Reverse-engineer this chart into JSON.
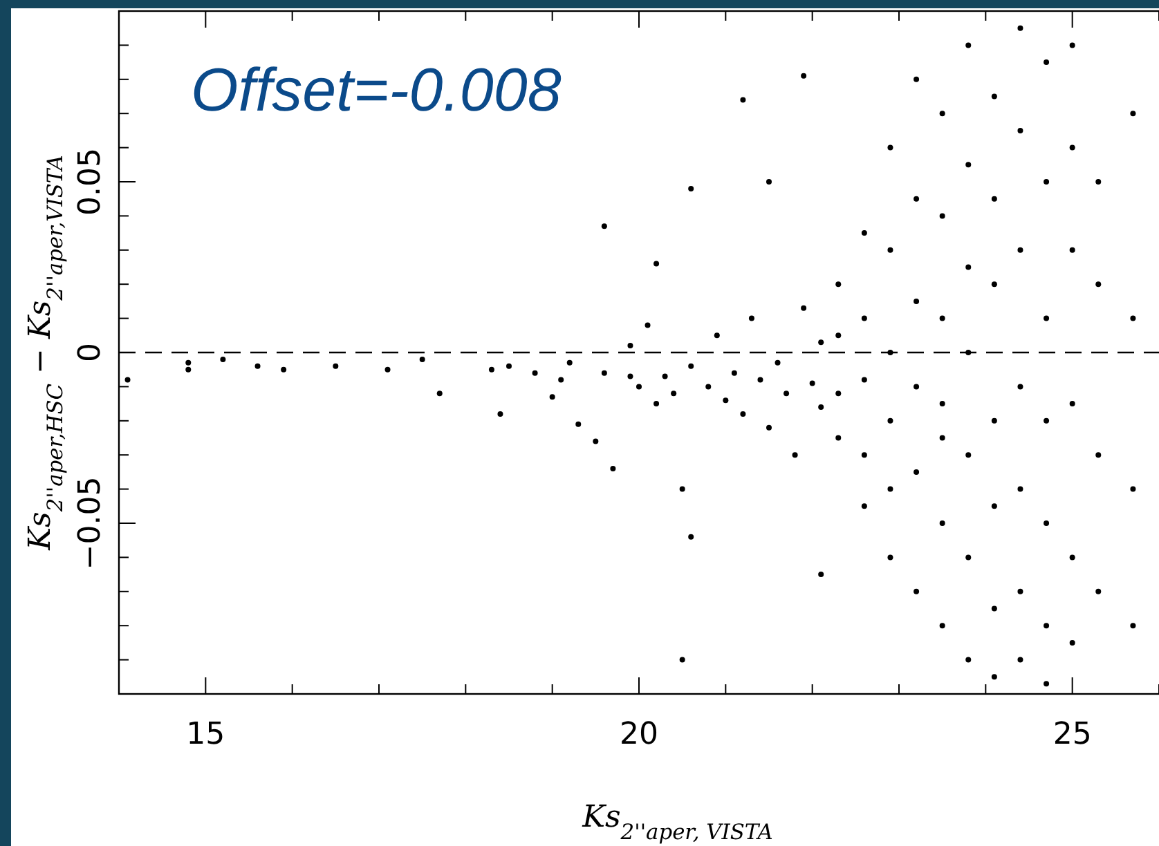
{
  "chart_data": {
    "type": "scatter",
    "xlabel": "Ks$_{2''aper, VISTA}$",
    "ylabel": "Ks$_{2''aper,HSC}$  −  Ks$_{2''aper,VISTA}$",
    "annotations": [
      "Offset=-0.008"
    ],
    "xlim": [
      14,
      26
    ],
    "ylim": [
      -0.1,
      0.1
    ],
    "xticks": [
      {
        "value": 14,
        "label": null
      },
      15,
      {
        "value": 16,
        "label": null
      },
      {
        "value": 17,
        "label": null
      },
      {
        "value": 18,
        "label": null
      },
      {
        "value": 19,
        "label": null
      },
      20,
      {
        "value": 21,
        "label": null
      },
      {
        "value": 22,
        "label": null
      },
      {
        "value": 23,
        "label": null
      },
      {
        "value": 24,
        "label": null
      },
      25,
      {
        "value": 26,
        "label": null
      }
    ],
    "yticks": [
      {
        "value": -0.09,
        "label": null
      },
      {
        "value": -0.08,
        "label": null
      },
      {
        "value": -0.07,
        "label": null
      },
      {
        "value": -0.06,
        "label": null
      },
      {
        "value": -0.05,
        "label": "−0.05"
      },
      {
        "value": -0.04,
        "label": null
      },
      {
        "value": -0.03,
        "label": null
      },
      {
        "value": -0.02,
        "label": null
      },
      {
        "value": -0.01,
        "label": null
      },
      0,
      {
        "value": 0.01,
        "label": null
      },
      {
        "value": 0.02,
        "label": null
      },
      {
        "value": 0.03,
        "label": null
      },
      {
        "value": 0.04,
        "label": null
      },
      0.05,
      {
        "value": 0.06,
        "label": null
      },
      {
        "value": 0.07,
        "label": null
      },
      {
        "value": 0.08,
        "label": null
      },
      {
        "value": 0.09,
        "label": null
      }
    ],
    "ref_lines": [
      {
        "axis": "y",
        "value": 0,
        "line_style": "dashed",
        "color": "#000000"
      }
    ],
    "marker": "circle",
    "grid": false,
    "series": [
      {
        "color": "#000000",
        "x": [
          14.1,
          14.8,
          14.8,
          15.2,
          15.6,
          15.9,
          16.5,
          17.1,
          17.5,
          17.7,
          18.3,
          18.4,
          18.5,
          18.8,
          19.0,
          19.1,
          19.2,
          19.3,
          19.5,
          19.6,
          19.7,
          19.9,
          19.9,
          20.0,
          20.1,
          20.2,
          20.3,
          20.4,
          20.5,
          20.6,
          20.8,
          20.9,
          21.0,
          21.1,
          21.2,
          21.3,
          21.4,
          21.5,
          21.6,
          21.7,
          21.8,
          21.9,
          22.0,
          22.1,
          22.1,
          19.6,
          20.2,
          20.6,
          21.5,
          20.6,
          20.5,
          21.2,
          21.9,
          22.1,
          22.3,
          22.3,
          22.3,
          22.3,
          22.6,
          22.6,
          22.6,
          22.6,
          22.6,
          22.9,
          22.9,
          22.9,
          22.9,
          22.9,
          22.9,
          23.2,
          23.2,
          23.2,
          23.2,
          23.2,
          23.2,
          23.5,
          23.5,
          23.5,
          23.5,
          23.5,
          23.5,
          23.5,
          23.8,
          23.8,
          23.8,
          23.8,
          23.8,
          23.8,
          23.8,
          24.1,
          24.1,
          24.1,
          24.1,
          24.1,
          24.1,
          24.1,
          24.4,
          24.4,
          24.4,
          24.4,
          24.4,
          24.4,
          24.4,
          24.7,
          24.7,
          24.7,
          24.7,
          24.7,
          24.7,
          24.7,
          25.0,
          25.0,
          25.0,
          25.0,
          25.0,
          25.0,
          25.3,
          25.3,
          25.3,
          25.3,
          25.7,
          25.7,
          25.7,
          25.7
        ],
        "values": [
          -0.008,
          -0.003,
          -0.005,
          -0.002,
          -0.004,
          -0.005,
          -0.004,
          -0.005,
          -0.002,
          -0.012,
          -0.005,
          -0.018,
          -0.004,
          -0.006,
          -0.013,
          -0.008,
          -0.003,
          -0.021,
          -0.026,
          -0.006,
          -0.034,
          0.002,
          -0.007,
          -0.01,
          0.008,
          -0.015,
          -0.007,
          -0.012,
          -0.04,
          -0.004,
          -0.01,
          0.005,
          -0.014,
          -0.006,
          -0.018,
          0.01,
          -0.008,
          -0.022,
          -0.003,
          -0.012,
          -0.03,
          0.013,
          -0.009,
          -0.016,
          0.003,
          0.037,
          0.026,
          0.048,
          0.05,
          -0.054,
          -0.09,
          0.074,
          0.081,
          -0.065,
          0.005,
          -0.012,
          -0.025,
          0.02,
          -0.008,
          -0.03,
          0.01,
          -0.045,
          0.035,
          0.0,
          -0.02,
          -0.04,
          0.03,
          -0.06,
          0.06,
          -0.01,
          0.015,
          -0.035,
          0.045,
          -0.07,
          0.08,
          -0.015,
          0.01,
          -0.05,
          0.04,
          -0.08,
          0.07,
          -0.025,
          0.0,
          -0.03,
          0.025,
          -0.06,
          0.055,
          -0.09,
          0.09,
          -0.02,
          0.02,
          -0.045,
          0.045,
          -0.075,
          0.075,
          -0.095,
          -0.01,
          0.03,
          -0.04,
          0.065,
          -0.07,
          0.095,
          -0.09,
          -0.02,
          0.01,
          -0.05,
          0.05,
          -0.08,
          0.085,
          -0.097,
          -0.015,
          0.03,
          -0.06,
          0.06,
          -0.085,
          0.09,
          -0.03,
          0.02,
          -0.07,
          0.05,
          0.01,
          -0.04,
          0.07,
          -0.08
        ]
      }
    ]
  }
}
